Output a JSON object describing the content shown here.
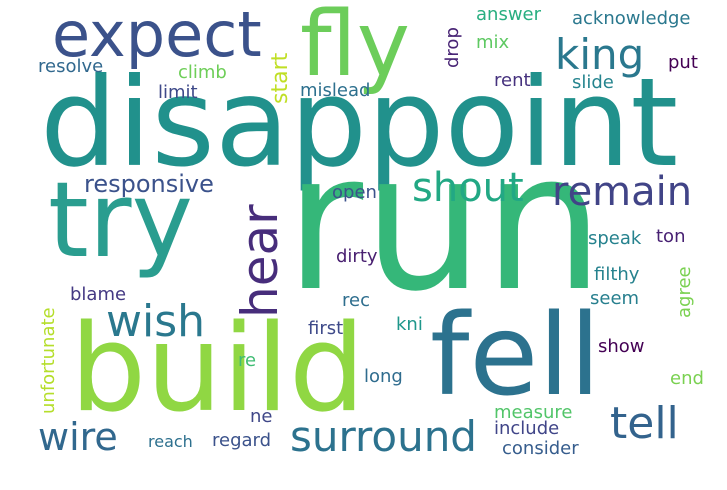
{
  "words": [
    {
      "text": "disappoint",
      "color": "#21918c"
    },
    {
      "text": "run",
      "color": "#35b779"
    },
    {
      "text": "build",
      "color": "#90d743"
    },
    {
      "text": "fell",
      "color": "#2c728e"
    },
    {
      "text": "try",
      "color": "#2a9d8f"
    },
    {
      "text": "fly",
      "color": "#6ccd5a"
    },
    {
      "text": "expect",
      "color": "#3b528b"
    },
    {
      "text": "hear",
      "color": "#472d7b"
    },
    {
      "text": "shout",
      "color": "#22a884"
    },
    {
      "text": "remain",
      "color": "#414487"
    },
    {
      "text": "king",
      "color": "#2a788e"
    },
    {
      "text": "surround",
      "color": "#2c728e"
    },
    {
      "text": "wire",
      "color": "#31688e"
    },
    {
      "text": "wish",
      "color": "#2a788e"
    },
    {
      "text": "tell",
      "color": "#33638d"
    },
    {
      "text": "responsive",
      "color": "#3b528b"
    },
    {
      "text": "start",
      "color": "#c0df25"
    },
    {
      "text": "drop",
      "color": "#482475"
    },
    {
      "text": "answer",
      "color": "#28ae80"
    },
    {
      "text": "acknowledge",
      "color": "#2a788e"
    },
    {
      "text": "resolve",
      "color": "#31688e"
    },
    {
      "text": "climb",
      "color": "#6ece58"
    },
    {
      "text": "mix",
      "color": "#5ec962"
    },
    {
      "text": "put",
      "color": "#440154"
    },
    {
      "text": "limit",
      "color": "#3e4989"
    },
    {
      "text": "mislead",
      "color": "#2d708e"
    },
    {
      "text": "rent",
      "color": "#46327e"
    },
    {
      "text": "slide",
      "color": "#25848e"
    },
    {
      "text": "open",
      "color": "#3b528b"
    },
    {
      "text": "speak",
      "color": "#26828e"
    },
    {
      "text": "ton",
      "color": "#482173"
    },
    {
      "text": "dirty",
      "color": "#481f70"
    },
    {
      "text": "agree",
      "color": "#7ad151"
    },
    {
      "text": "filthy",
      "color": "#26828e"
    },
    {
      "text": "blame",
      "color": "#443983"
    },
    {
      "text": "rec",
      "color": "#2e6e8e"
    },
    {
      "text": "seem",
      "color": "#277f8e"
    },
    {
      "text": "unfortunate",
      "color": "#b5de2b"
    },
    {
      "text": "first",
      "color": "#3e4a89"
    },
    {
      "text": "kni",
      "color": "#1f978b"
    },
    {
      "text": "show",
      "color": "#440154"
    },
    {
      "text": "re",
      "color": "#3fbc73"
    },
    {
      "text": "long",
      "color": "#2f6c8e"
    },
    {
      "text": "end",
      "color": "#7ad151"
    },
    {
      "text": "ne",
      "color": "#3f4788"
    },
    {
      "text": "measure",
      "color": "#52c569"
    },
    {
      "text": "include",
      "color": "#404588"
    },
    {
      "text": "reach",
      "color": "#2d708e"
    },
    {
      "text": "regard",
      "color": "#3b528b"
    },
    {
      "text": "consider",
      "color": "#365d8d"
    }
  ]
}
